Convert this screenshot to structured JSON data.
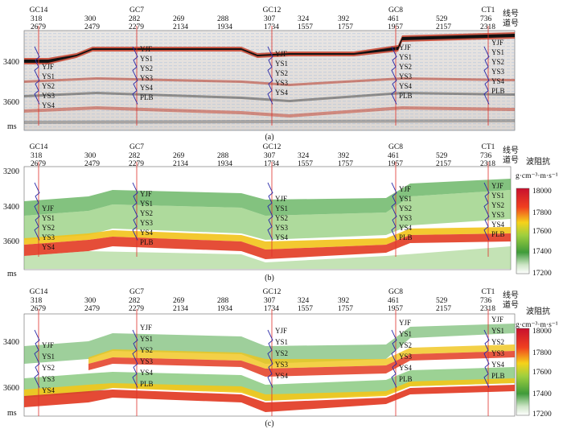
{
  "common": {
    "traces": [
      {
        "line": "318",
        "trace": "2679"
      },
      {
        "line": "300",
        "trace": "2479"
      },
      {
        "line": "282",
        "trace": "2279"
      },
      {
        "line": "269",
        "trace": "2134"
      },
      {
        "line": "288",
        "trace": "1934"
      },
      {
        "line": "307",
        "trace": "1734"
      },
      {
        "line": "324",
        "trace": "1557"
      },
      {
        "line": "392",
        "trace": "1757"
      },
      {
        "line": "461",
        "trace": "1957"
      },
      {
        "line": "529",
        "trace": "2157"
      },
      {
        "line": "736",
        "trace": "2318"
      }
    ],
    "wells": [
      "GC14",
      "GC7",
      "GC12",
      "GC8",
      "CT1"
    ],
    "line_label": "线号",
    "trace_label": "道号",
    "unit": "ms"
  },
  "panel_a": {
    "caption": "(a)",
    "y_ticks": [
      "3400",
      "3600"
    ],
    "horizons": {
      "gc14": [
        "YJF",
        "YS1",
        "YS2",
        "YS3",
        "YS4"
      ],
      "gc7": [
        "YJF",
        "YS1",
        "YS2",
        "YS3",
        "YS4",
        "PLB"
      ],
      "gc12": [
        "YJF",
        "YS1",
        "YS2",
        "YS3",
        "YS4"
      ],
      "gc8": [
        "YJF",
        "YS1",
        "YS2",
        "YS3",
        "YS4",
        "PLB"
      ],
      "ct1": [
        "YJF",
        "YS1",
        "YS2",
        "YS3",
        "YS4",
        "PLB"
      ]
    }
  },
  "panel_b": {
    "caption": "(b)",
    "y_ticks": [
      "3200",
      "3400",
      "3600"
    ],
    "horizons": {
      "gc14": [
        "YJF",
        "YS1",
        "YS2",
        "YS3",
        "YS4"
      ],
      "gc7": [
        "YJF",
        "YS1",
        "YS2",
        "YS3",
        "YS4",
        "PLB"
      ],
      "gc12": [
        "YJF",
        "YS1",
        "YS2",
        "YS3",
        "YS4"
      ],
      "gc8": [
        "YJF",
        "YS1",
        "YS2",
        "YS3",
        "YS4",
        "PLB"
      ],
      "ct1": [
        "YJF",
        "YS1",
        "YS2",
        "YS3",
        "YS4",
        "PLB"
      ]
    },
    "legend": {
      "title": "波阻抗",
      "unit": "g·cm⁻³·m·s⁻¹",
      "ticks": [
        "18000",
        "17800",
        "17600",
        "17400",
        "17200"
      ]
    }
  },
  "panel_c": {
    "caption": "(c)",
    "y_ticks": [
      "3400",
      "3600"
    ],
    "horizons": {
      "gc14": [
        "YJF",
        "YS1",
        "YS2",
        "YS3",
        "YS4"
      ],
      "gc7": [
        "YJF",
        "YS1",
        "YS2",
        "YS3",
        "YS4",
        "PLB"
      ],
      "gc12": [
        "YJF",
        "YS1",
        "YS2",
        "YS3",
        "YS4"
      ],
      "gc8": [
        "YJF",
        "YS1",
        "YS2",
        "YS3",
        "YS4",
        "PLB"
      ],
      "ct1": [
        "YJF",
        "YS1",
        "YS2",
        "YS3",
        "YS4",
        "PLB"
      ]
    },
    "legend": {
      "title": "波阻抗",
      "unit": "g·cm⁻³·m·s⁻¹",
      "ticks": [
        "18000",
        "17800",
        "17600",
        "17400",
        "17200"
      ]
    }
  }
}
